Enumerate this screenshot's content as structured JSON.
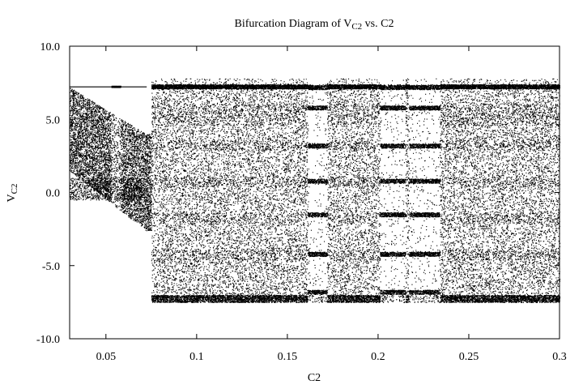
{
  "chart_data": {
    "type": "scatter",
    "title": {
      "prefix": "Bifurcation Diagram of V",
      "sub": "C2",
      "suffix": "  vs. C2"
    },
    "xlabel": "C2",
    "ylabel": {
      "main": "V",
      "sub": "C2"
    },
    "xlim": [
      0.03,
      0.3
    ],
    "ylim": [
      -10.0,
      10.0
    ],
    "xticks": [
      {
        "v": 0.05,
        "label": "0.05"
      },
      {
        "v": 0.1,
        "label": "0.1"
      },
      {
        "v": 0.15,
        "label": "0.15"
      },
      {
        "v": 0.2,
        "label": "0.2"
      },
      {
        "v": 0.25,
        "label": "0.25"
      },
      {
        "v": 0.3,
        "label": "0.3"
      }
    ],
    "yticks": [
      {
        "v": 10.0,
        "label": "10.0"
      },
      {
        "v": 5.0,
        "label": "5.0"
      },
      {
        "v": 0.0,
        "label": "0.0"
      },
      {
        "v": -5.0,
        "label": "-5.0"
      },
      {
        "v": -10.0,
        "label": "-10.0"
      }
    ],
    "grid": false,
    "series": [
      {
        "marker": "dot",
        "color": "#000000",
        "description_points": [
          {
            "x": 0.03,
            "y": 7.2
          },
          {
            "x": 0.03,
            "y": 1.5
          },
          {
            "x": 0.055,
            "y": 7.3
          },
          {
            "x": 0.055,
            "y": 0.0
          },
          {
            "x": 0.072,
            "y": 4.0
          },
          {
            "x": 0.072,
            "y": -2.6
          },
          {
            "x": 0.075,
            "y": 7.3
          },
          {
            "x": 0.075,
            "y": -7.5
          },
          {
            "x": 0.15,
            "y": 7.3
          },
          {
            "x": 0.15,
            "y": -7.3
          },
          {
            "x": 0.22,
            "y": 7.0
          },
          {
            "x": 0.22,
            "y": 0.8
          },
          {
            "x": 0.3,
            "y": 7.2
          },
          {
            "x": 0.3,
            "y": -7.2
          }
        ]
      }
    ]
  }
}
